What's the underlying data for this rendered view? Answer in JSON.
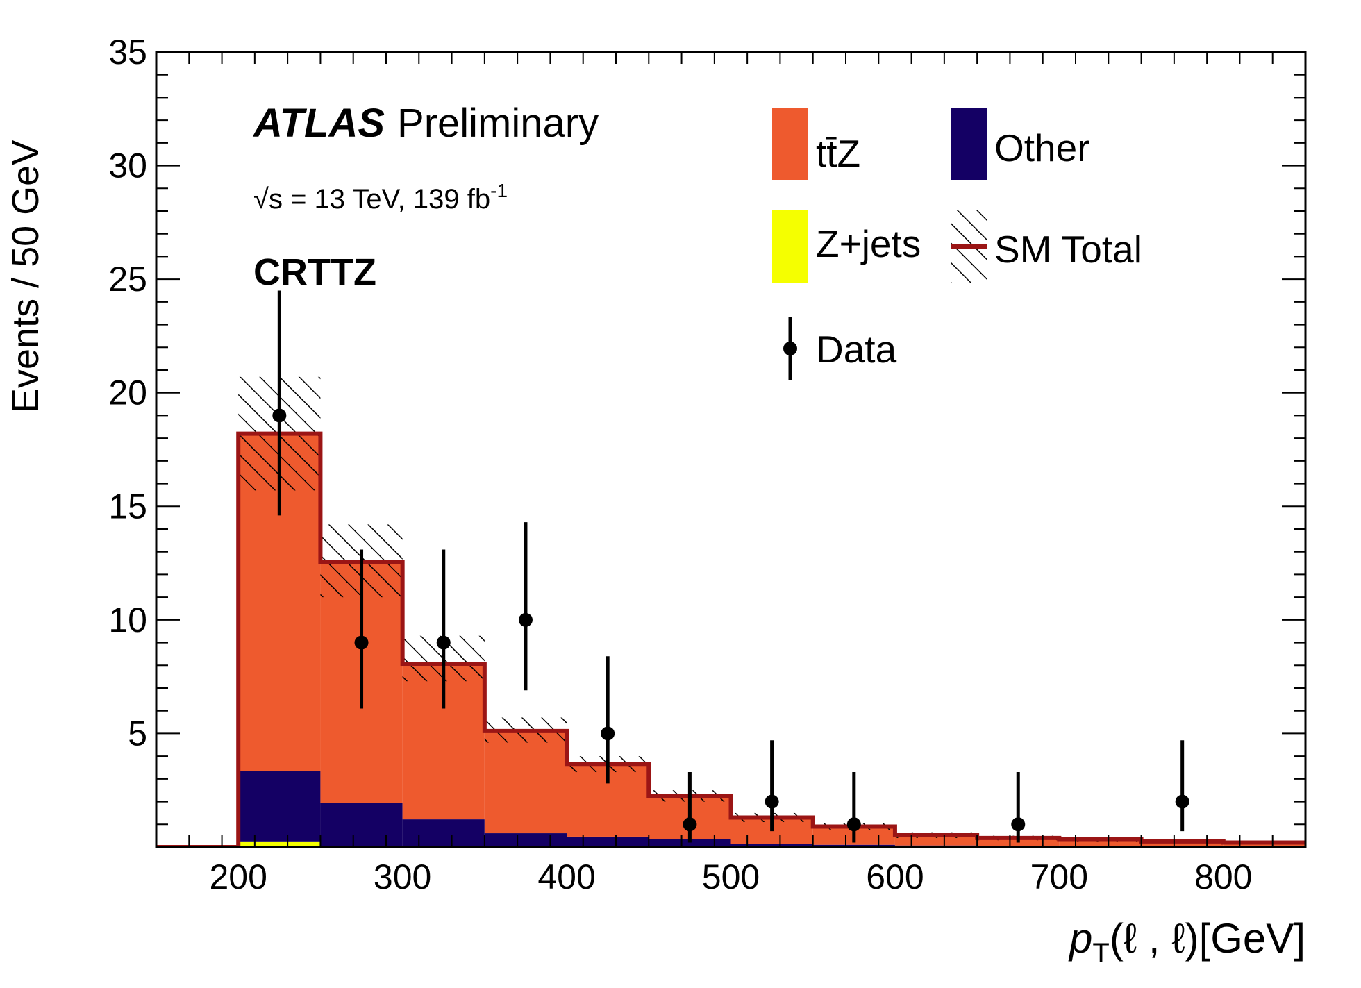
{
  "chart_data": {
    "type": "bar",
    "style": "stacked step histogram with data points",
    "x_bin_edges": [
      150,
      200,
      250,
      300,
      350,
      400,
      450,
      500,
      550,
      600,
      650,
      700,
      750,
      800,
      850
    ],
    "xlim": [
      150,
      850
    ],
    "ylim": [
      0,
      35
    ],
    "x_ticks": [
      "200",
      "300",
      "400",
      "500",
      "600",
      "700",
      "800"
    ],
    "y_ticks": [
      "5",
      "10",
      "15",
      "20",
      "25",
      "30",
      "35"
    ],
    "xlabel": "p_T(ℓ, ℓ)[GeV]",
    "ylabel": "Events / 50 GeV",
    "series": [
      {
        "name": "Z+jets",
        "color": "#f5ff00",
        "values": [
          0,
          0.25,
          0.05,
          0.02,
          0.01,
          0.01,
          0,
          0,
          0,
          0,
          0,
          0,
          0,
          0
        ]
      },
      {
        "name": "Other",
        "color": "#140064",
        "values": [
          0,
          3.1,
          1.9,
          1.2,
          0.6,
          0.45,
          0.35,
          0.15,
          0.1,
          0.07,
          0.05,
          0.04,
          0.03,
          0.02
        ]
      },
      {
        "name": "tt̄Z",
        "color": "#ee5a2e",
        "values": [
          0,
          14.85,
          10.6,
          6.85,
          4.5,
          3.2,
          1.9,
          1.15,
          0.8,
          0.45,
          0.35,
          0.31,
          0.22,
          0.18
        ]
      }
    ],
    "sm_total": {
      "name": "SM Total",
      "color": "#9b1515",
      "values": [
        0,
        18.2,
        12.55,
        8.07,
        5.11,
        3.66,
        2.25,
        1.3,
        0.9,
        0.52,
        0.4,
        0.35,
        0.25,
        0.2
      ],
      "unc_low": [
        0,
        15.7,
        11.0,
        7.3,
        4.6,
        3.3,
        2.0,
        1.1,
        0.75,
        0.4,
        0.3,
        0.25,
        0.18,
        0.14
      ],
      "unc_high": [
        0,
        20.7,
        14.2,
        9.3,
        5.7,
        4.0,
        2.5,
        1.5,
        1.05,
        0.62,
        0.5,
        0.42,
        0.32,
        0.26
      ]
    },
    "data": {
      "name": "Data",
      "x": [
        225,
        275,
        325,
        375,
        425,
        475,
        525,
        575,
        675,
        775
      ],
      "y": [
        19,
        9,
        9,
        10,
        5,
        1,
        2,
        1,
        1,
        2
      ],
      "err_low": [
        4.4,
        2.9,
        2.9,
        3.1,
        2.2,
        0.8,
        1.3,
        0.8,
        0.8,
        1.3
      ],
      "err_high": [
        5.5,
        4.1,
        4.1,
        4.3,
        3.4,
        2.3,
        2.7,
        2.3,
        2.3,
        2.7
      ]
    }
  },
  "annotations": {
    "atlas": "ATLAS",
    "status": "Preliminary",
    "energy_prefix": "√s = 13 TeV, 139 fb",
    "energy_sup": "-1",
    "region": "CRTTZ"
  },
  "axis_text": {
    "ylabel": "Events / 50 GeV",
    "xlabel_p": "p",
    "xlabel_sub": "T",
    "xlabel_rest": "(ℓ , ℓ)[GeV]"
  },
  "legend": {
    "ttz": "tt̄Z",
    "other": "Other",
    "zjets": "Z+jets",
    "sm_total": "SM Total",
    "data": "Data"
  }
}
